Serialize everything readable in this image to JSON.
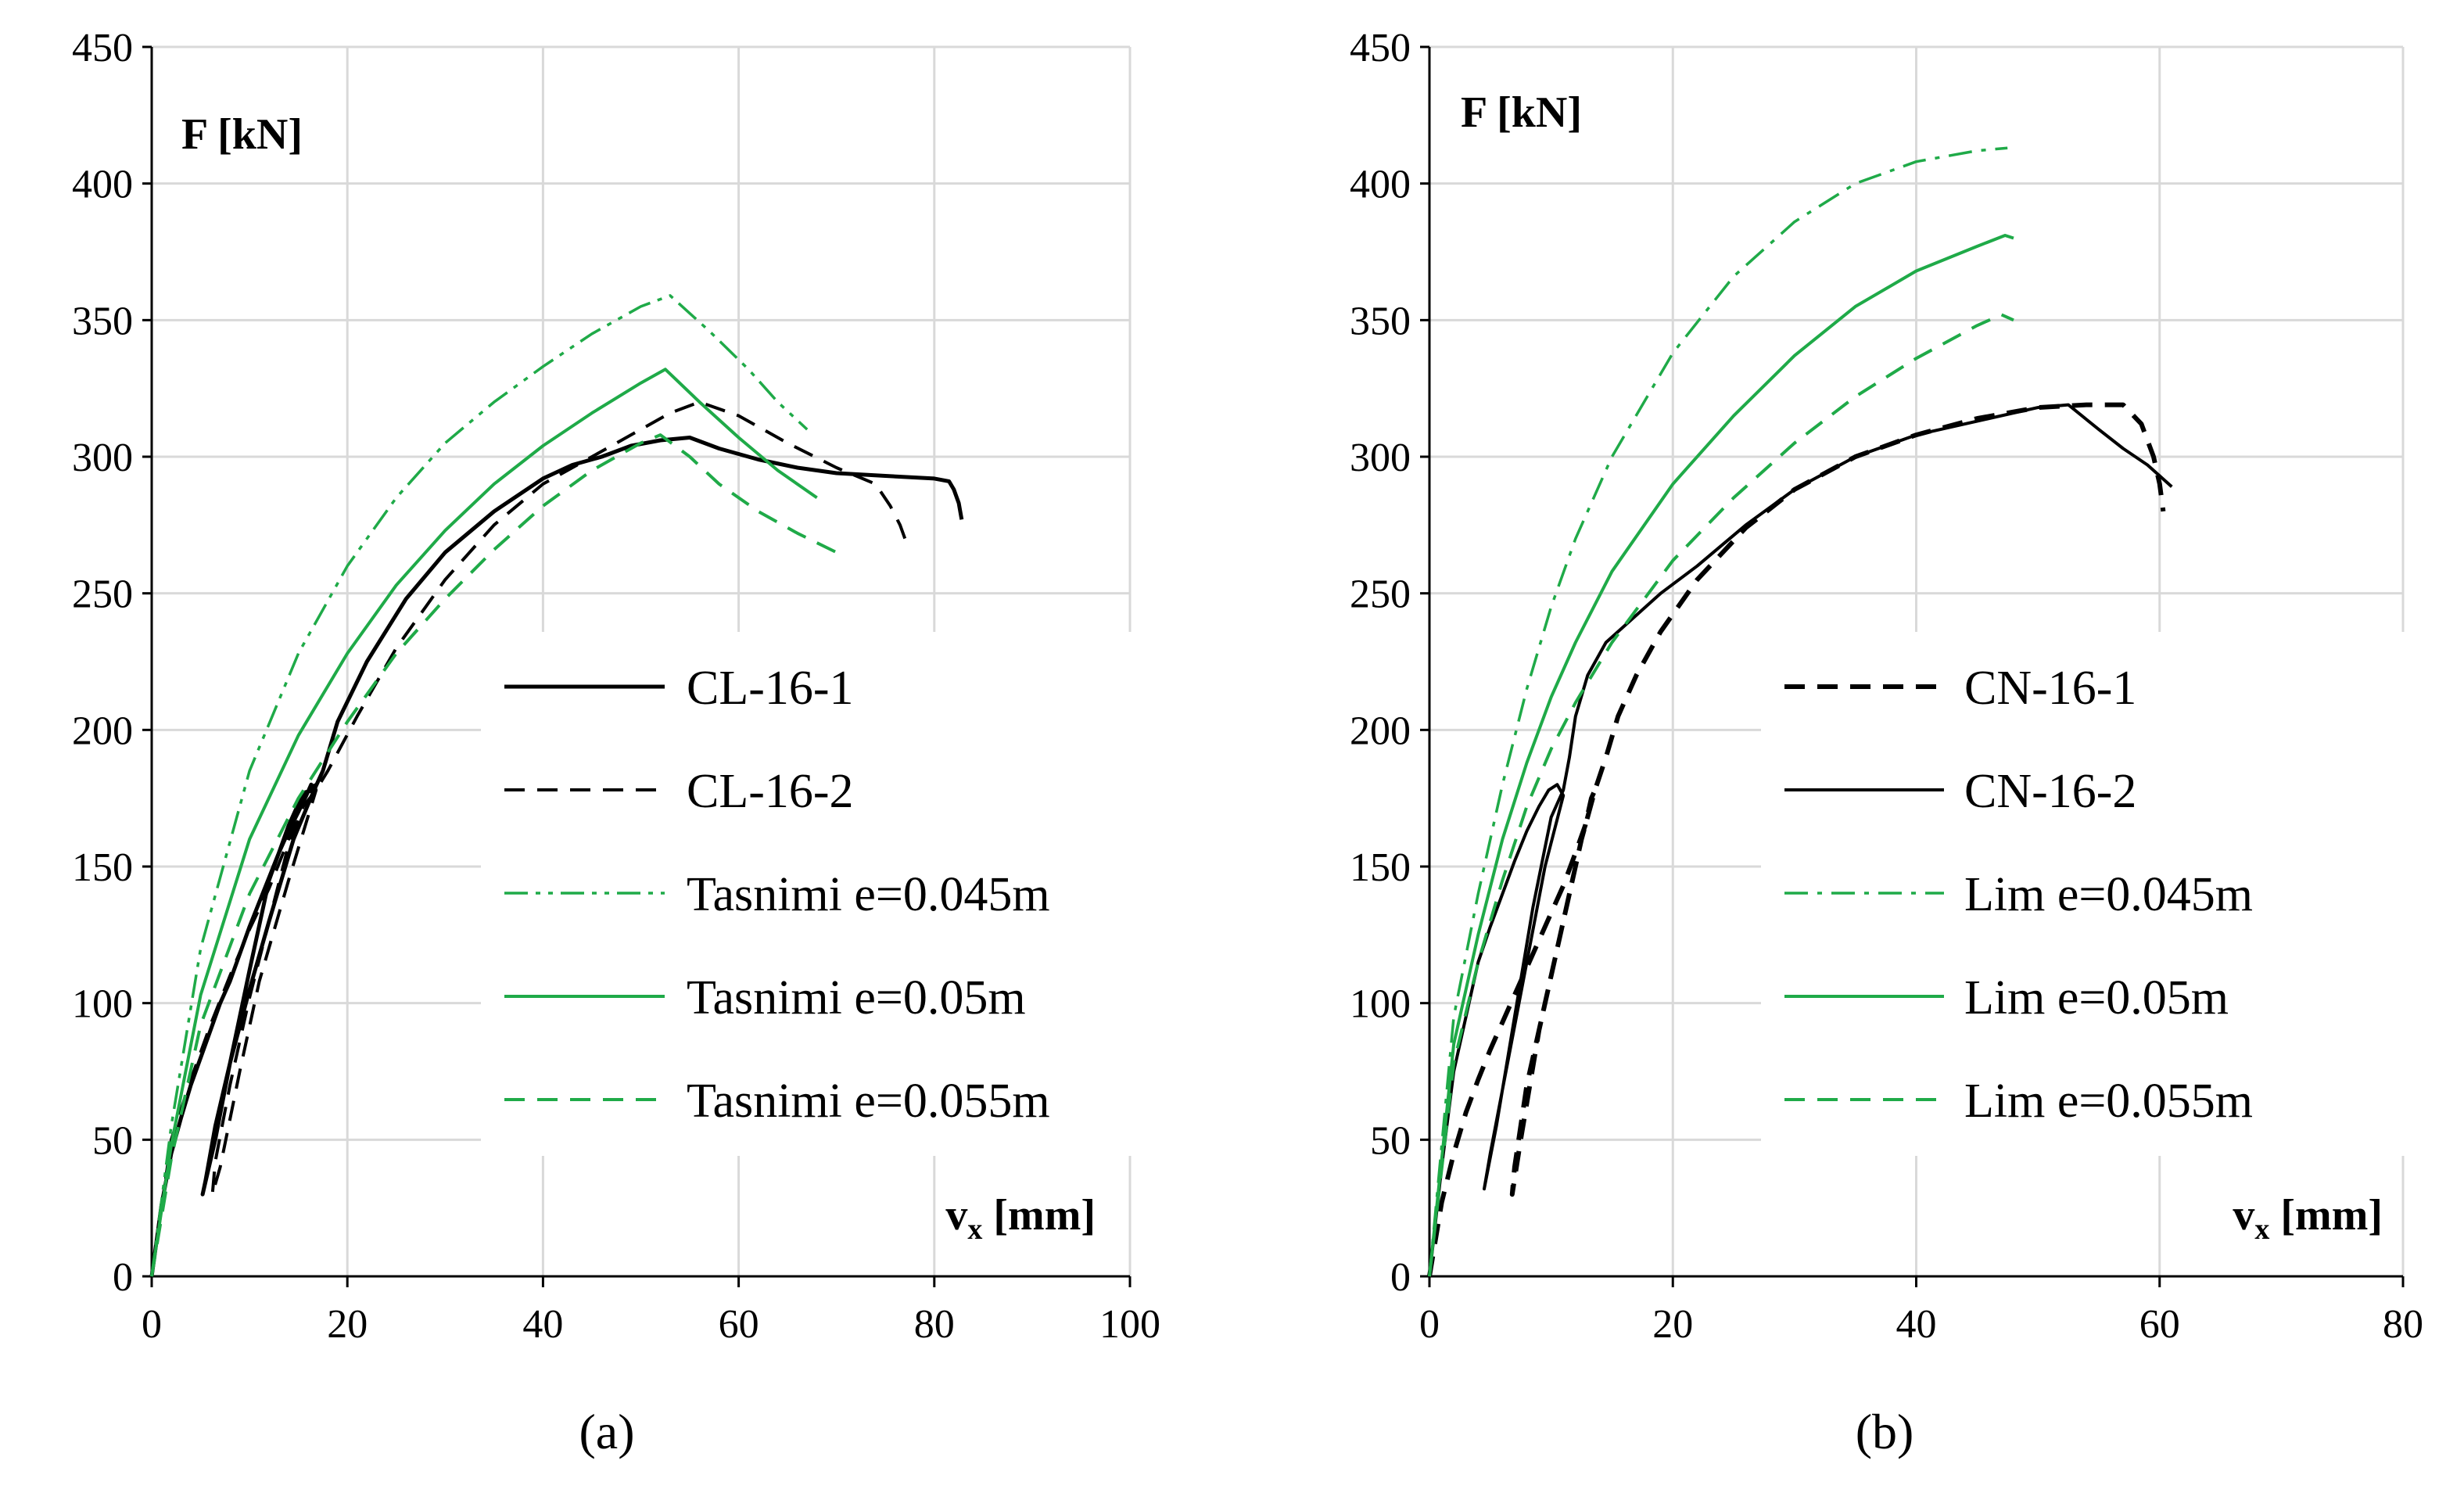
{
  "figure": {
    "labels": [
      "(a)",
      "(b)"
    ]
  },
  "colors": {
    "black": "#000000",
    "green": "#1faa48",
    "grid": "#d9d9d9"
  },
  "chart_data": [
    {
      "type": "line",
      "panel_label": "(a)",
      "ylabel": "F [kN]",
      "xlabel": "v",
      "xlabel_sub": "x",
      "xlabel_unit": " [mm]",
      "xlim": [
        0,
        100
      ],
      "ylim": [
        0,
        450
      ],
      "xticks": [
        0,
        20,
        40,
        60,
        80,
        100
      ],
      "yticks": [
        0,
        50,
        100,
        150,
        200,
        250,
        300,
        350,
        400,
        450
      ],
      "grid": true,
      "legend_position": "right-middle",
      "series": [
        {
          "name": "CL-16-1",
          "color": "#000000",
          "dash": "solid",
          "width": 5,
          "x": [
            0,
            1,
            2,
            3,
            4,
            5,
            6,
            7,
            8,
            9,
            10,
            11,
            12,
            13,
            14,
            15,
            15.8,
            16.3,
            16.6,
            14.5,
            12,
            10,
            8,
            6.5,
            5.5,
            5.2,
            6.5,
            8,
            10,
            12,
            14,
            15.5,
            16.6,
            17.5,
            19,
            22,
            26,
            30,
            35,
            40,
            43,
            46,
            49,
            52,
            55,
            58,
            62,
            66,
            70,
            75,
            80,
            81.5,
            82,
            82.5,
            82.8
          ],
          "y": [
            0,
            26,
            45,
            58,
            70,
            80,
            90,
            100,
            108,
            118,
            128,
            137,
            146,
            155,
            163,
            170,
            176,
            180,
            178,
            160,
            130,
            105,
            78,
            55,
            35,
            30,
            50,
            78,
            112,
            145,
            165,
            177,
            178,
            185,
            203,
            225,
            248,
            265,
            280,
            292,
            297,
            300,
            304,
            306,
            307,
            303,
            299,
            296,
            294,
            293,
            292,
            291,
            288,
            283,
            277
          ]
        },
        {
          "name": "CL-16-2",
          "color": "#000000",
          "dash": "dashed",
          "width": 4,
          "x": [
            0,
            2,
            4,
            6,
            8,
            10,
            12,
            14,
            15.5,
            16.5,
            16.8,
            14,
            11,
            9,
            7,
            6.2,
            6.5,
            8,
            10,
            12,
            14,
            15.5,
            16.8,
            18,
            21,
            25,
            30,
            35,
            40,
            45,
            50,
            53,
            56,
            60,
            65,
            70,
            74,
            75.5,
            76.5,
            77
          ],
          "y": [
            0,
            50,
            72,
            92,
            110,
            127,
            142,
            160,
            175,
            181,
            178,
            145,
            108,
            75,
            40,
            30,
            42,
            70,
            102,
            130,
            158,
            172,
            178,
            185,
            205,
            230,
            255,
            275,
            290,
            300,
            310,
            316,
            320,
            315,
            305,
            296,
            290,
            282,
            275,
            270
          ]
        },
        {
          "name": "Tasnimi e=0.045m",
          "color": "#1faa48",
          "dash": "dashdotdot",
          "width": 3.5,
          "x": [
            0,
            2,
            5,
            10,
            15,
            20,
            25,
            30,
            35,
            40,
            45,
            50,
            53,
            57,
            61,
            64,
            67
          ],
          "y": [
            0,
            55,
            120,
            185,
            228,
            260,
            285,
            305,
            320,
            333,
            345,
            355,
            359,
            346,
            332,
            320,
            310
          ]
        },
        {
          "name": "Tasnimi e=0.05m",
          "color": "#1faa48",
          "dash": "solid",
          "width": 4,
          "x": [
            0,
            2,
            5,
            10,
            15,
            20,
            25,
            30,
            35,
            40,
            45,
            50,
            52.5,
            56,
            60,
            64,
            68
          ],
          "y": [
            0,
            48,
            103,
            160,
            198,
            228,
            253,
            273,
            290,
            304,
            316,
            327,
            332,
            320,
            307,
            295,
            285
          ]
        },
        {
          "name": "Tasnimi e=0.055m",
          "color": "#1faa48",
          "dash": "dashed",
          "width": 4,
          "x": [
            0,
            2,
            5,
            10,
            15,
            20,
            25,
            30,
            35,
            40,
            45,
            50,
            52,
            55,
            58,
            62,
            66,
            70
          ],
          "y": [
            0,
            43,
            92,
            140,
            175,
            203,
            228,
            248,
            266,
            282,
            295,
            305,
            308,
            300,
            290,
            280,
            272,
            265
          ]
        }
      ],
      "legend": [
        "CL-16-1",
        "CL-16-2",
        "Tasnimi e=0.045m",
        "Tasnimi e=0.05m",
        "Tasnimi e=0.055m"
      ]
    },
    {
      "type": "line",
      "panel_label": "(b)",
      "ylabel": "F [kN]",
      "xlabel": "v",
      "xlabel_sub": "x",
      "xlabel_unit": " [mm]",
      "xlim": [
        0,
        80
      ],
      "ylim": [
        0,
        450
      ],
      "xticks": [
        0,
        20,
        40,
        60,
        80
      ],
      "yticks": [
        0,
        50,
        100,
        150,
        200,
        250,
        300,
        350,
        400,
        450
      ],
      "grid": true,
      "legend_position": "right-middle",
      "series": [
        {
          "name": "CN-16-1",
          "color": "#000000",
          "dash": "dashed",
          "width": 6,
          "x": [
            0,
            1,
            2,
            3,
            4,
            5,
            6,
            7,
            8,
            9,
            10,
            11,
            12,
            12.8,
            13.3,
            13.6,
            12.5,
            11,
            9.5,
            8,
            7,
            6.8,
            7.5,
            9,
            11,
            12.5,
            13.6,
            14.5,
            15.5,
            17,
            19,
            22,
            26,
            30,
            35,
            40,
            45,
            50,
            54,
            57,
            58.5,
            59.5,
            60,
            60.3
          ],
          "y": [
            0,
            27,
            45,
            60,
            72,
            83,
            93,
            103,
            113,
            123,
            133,
            143,
            155,
            165,
            175,
            178,
            160,
            130,
            100,
            70,
            40,
            30,
            50,
            90,
            130,
            160,
            178,
            190,
            205,
            220,
            236,
            255,
            274,
            288,
            300,
            308,
            314,
            318,
            319,
            319,
            312,
            300,
            290,
            280
          ]
        },
        {
          "name": "CN-16-2",
          "color": "#000000",
          "dash": "solid",
          "width": 4,
          "x": [
            0,
            1,
            2,
            3,
            4,
            5,
            6,
            7,
            8,
            9,
            9.8,
            10.5,
            11,
            9.5,
            8,
            6.5,
            5,
            4.5,
            5.5,
            7,
            8.5,
            10,
            11,
            11.5,
            12,
            13,
            14.5,
            16.5,
            19,
            22,
            26,
            30,
            35,
            40,
            45,
            50,
            52.5,
            55,
            57,
            59,
            61
          ],
          "y": [
            0,
            40,
            75,
            95,
            115,
            128,
            140,
            152,
            163,
            172,
            178,
            180,
            176,
            150,
            115,
            80,
            45,
            32,
            55,
            95,
            135,
            168,
            178,
            190,
            205,
            220,
            232,
            240,
            250,
            260,
            275,
            288,
            300,
            308,
            313,
            318,
            319,
            310,
            303,
            297,
            289
          ]
        },
        {
          "name": "Lim e=0.045m",
          "color": "#1faa48",
          "dash": "dashdot",
          "width": 3.5,
          "x": [
            0,
            2,
            4,
            6,
            8,
            10,
            12,
            15,
            20,
            25,
            30,
            35,
            40,
            45,
            47.5
          ],
          "y": [
            0,
            95,
            140,
            180,
            215,
            245,
            270,
            300,
            338,
            366,
            386,
            400,
            408,
            412,
            413
          ]
        },
        {
          "name": "Lim e=0.05m",
          "color": "#1faa48",
          "dash": "solid",
          "width": 4,
          "x": [
            0,
            2,
            4,
            6,
            8,
            10,
            12,
            15,
            20,
            25,
            30,
            35,
            40,
            45,
            47.3,
            48
          ],
          "y": [
            0,
            85,
            125,
            160,
            188,
            212,
            232,
            258,
            290,
            315,
            337,
            355,
            368,
            377,
            381,
            380
          ]
        },
        {
          "name": "Lim e=0.055m",
          "color": "#1faa48",
          "dash": "dashed",
          "width": 4,
          "x": [
            0,
            2,
            4,
            6,
            8,
            10,
            12,
            15,
            20,
            25,
            30,
            35,
            40,
            45,
            47,
            48
          ],
          "y": [
            0,
            78,
            115,
            145,
            172,
            193,
            210,
            232,
            262,
            285,
            305,
            322,
            336,
            348,
            352,
            350
          ]
        }
      ],
      "legend": [
        "CN-16-1",
        "CN-16-2",
        "Lim e=0.045m",
        "Lim e=0.05m",
        "Lim e=0.055m"
      ]
    }
  ]
}
